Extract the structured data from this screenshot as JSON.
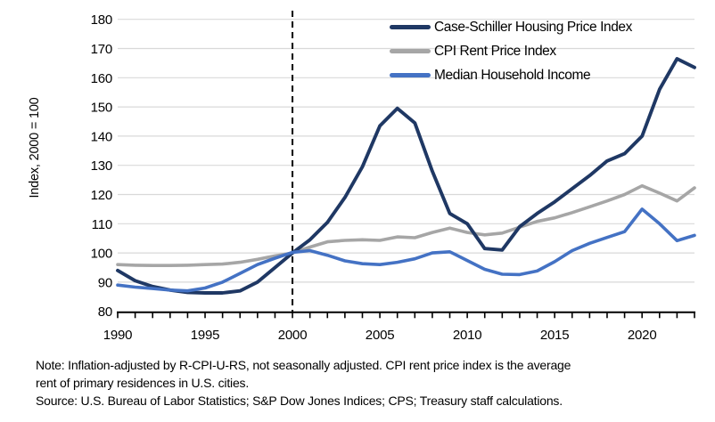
{
  "figure": {
    "ylabel": "Index, 2000 = 100",
    "note_line1": "Note: Inflation-adjusted by R-CPI-U-RS, not seasonally adjusted. CPI rent price index is the average",
    "note_line2": "rent of primary residences in U.S. cities.",
    "source": "Source: U.S. Bureau of Labor Statistics; S&P Dow Jones Indices; CPS; Treasury staff calculations."
  },
  "chart_data": {
    "type": "line",
    "title": "",
    "ylabel": "Index, 2000 = 100",
    "xlabel": "",
    "xlim": [
      1990,
      2023
    ],
    "ylim": [
      80,
      180
    ],
    "ytick_step": 10,
    "xticks": [
      1990,
      1995,
      2000,
      2005,
      2010,
      2015,
      2020
    ],
    "grid": true,
    "gridline_color": "#d9d9d9",
    "axis_color": "#000000",
    "legend_position": "top-right",
    "reference_line": {
      "x": 2000,
      "style": "dashed",
      "color": "#000000"
    },
    "x": [
      1990,
      1991,
      1992,
      1993,
      1994,
      1995,
      1996,
      1997,
      1998,
      1999,
      2000,
      2001,
      2002,
      2003,
      2004,
      2005,
      2006,
      2007,
      2008,
      2009,
      2010,
      2011,
      2012,
      2013,
      2014,
      2015,
      2016,
      2017,
      2018,
      2019,
      2020,
      2021,
      2022,
      2023
    ],
    "series": [
      {
        "name": "Case-Schiller Housing Price Index",
        "color": "#1f3864",
        "values": [
          94,
          90.5,
          88.5,
          87.3,
          86.5,
          86.3,
          86.3,
          87,
          90,
          95,
          100,
          104.5,
          110.5,
          119,
          129.5,
          143.5,
          149.5,
          144.5,
          128,
          113.5,
          110,
          101.5,
          101,
          109,
          113.5,
          117.5,
          122,
          126.5,
          131.5,
          134,
          140,
          156,
          166.5,
          163.5
        ]
      },
      {
        "name": "CPI Rent Price Index",
        "color": "#a6a6a6",
        "values": [
          96,
          95.8,
          95.7,
          95.7,
          95.8,
          96,
          96.2,
          96.8,
          97.8,
          99,
          100,
          102,
          103.8,
          104.3,
          104.5,
          104.3,
          105.5,
          105.2,
          107,
          108.5,
          107,
          106.2,
          106.8,
          108.8,
          110.8,
          112,
          113.8,
          115.8,
          117.8,
          120,
          123,
          120.5,
          117.8,
          122.3
        ]
      },
      {
        "name": "Median Household Income",
        "color": "#4472c4",
        "values": [
          89,
          88.3,
          87.8,
          87.3,
          87,
          88,
          90,
          93,
          96,
          98.2,
          100.2,
          100.8,
          99.2,
          97.3,
          96.3,
          96,
          96.8,
          98,
          100,
          100.4,
          97.4,
          94.4,
          92.7,
          92.6,
          93.8,
          97,
          100.8,
          103.3,
          105.3,
          107.3,
          115,
          110,
          104.2,
          106
        ]
      }
    ]
  }
}
